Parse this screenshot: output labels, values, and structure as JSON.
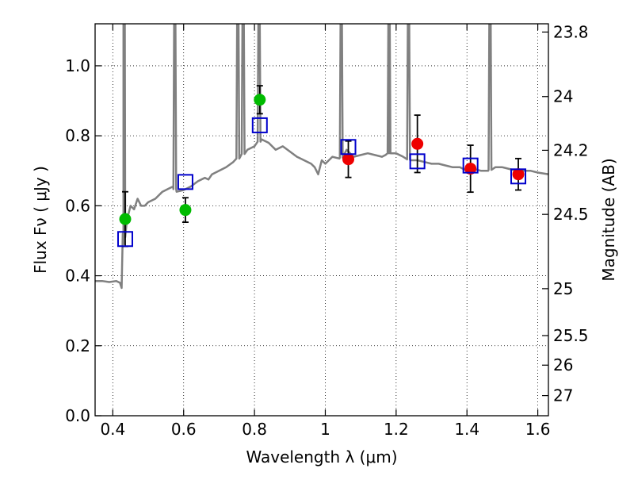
{
  "chart_data": {
    "type": "scatter",
    "title": "",
    "xlabel": "Wavelength  λ (μm)",
    "ylabel": "Flux  Fν  ( μJy )",
    "ylabel_right": "Magnitude (AB)",
    "xlim": [
      0.35,
      1.63
    ],
    "ylim": [
      0.0,
      1.12
    ],
    "grid": true,
    "x_ticks": [
      0.4,
      0.6,
      0.8,
      1.0,
      1.2,
      1.4,
      1.6
    ],
    "x_tick_labels": [
      "0.4",
      "0.6",
      "0.8",
      "1",
      "1.2",
      "1.4",
      "1.6"
    ],
    "y_ticks": [
      0.0,
      0.2,
      0.4,
      0.6,
      0.8,
      1.0
    ],
    "y_tick_labels": [
      "0.0",
      "0.2",
      "0.4",
      "0.6",
      "0.8",
      "1.0"
    ],
    "right_ticks": [
      {
        "label": "23.8",
        "mag": 23.8
      },
      {
        "label": "24",
        "mag": 24.0
      },
      {
        "label": "24.2",
        "mag": 24.2
      },
      {
        "label": "24.5",
        "mag": 24.5
      },
      {
        "label": "25",
        "mag": 25.0
      },
      {
        "label": "25.5",
        "mag": 25.5
      },
      {
        "label": "26",
        "mag": 26.0
      },
      {
        "label": "27",
        "mag": 27.0
      }
    ],
    "colors": {
      "spectrum": "#808080",
      "optical_points": "#00bb00",
      "nir_points": "#ee0000",
      "model_boxes": "#0000cc",
      "errorbars": "#000000"
    },
    "series": [
      {
        "type": "line",
        "x": [
          0.35,
          0.37,
          0.39,
          0.41,
          0.42,
          0.425,
          0.43,
          0.432,
          0.435,
          0.44,
          0.445,
          0.45,
          0.46,
          0.47,
          0.48,
          0.49,
          0.5,
          0.52,
          0.54,
          0.56,
          0.57,
          0.58,
          0.6,
          0.62,
          0.64,
          0.66,
          0.67,
          0.68,
          0.7,
          0.72,
          0.74,
          0.76,
          0.78,
          0.8,
          0.82,
          0.84,
          0.86,
          0.88,
          0.9,
          0.92,
          0.94,
          0.96,
          0.97,
          0.98,
          0.99,
          1.0,
          1.02,
          1.04,
          1.05,
          1.06,
          1.08,
          1.1,
          1.12,
          1.14,
          1.16,
          1.17,
          1.18,
          1.2,
          1.22,
          1.24,
          1.26,
          1.28,
          1.3,
          1.32,
          1.34,
          1.36,
          1.38,
          1.4,
          1.42,
          1.44,
          1.46,
          1.48,
          1.5,
          1.52,
          1.54,
          1.56,
          1.58,
          1.6,
          1.63
        ],
        "y": [
          0.385,
          0.385,
          0.382,
          0.385,
          0.38,
          0.365,
          0.49,
          0.52,
          0.51,
          0.56,
          0.58,
          0.6,
          0.59,
          0.62,
          0.6,
          0.6,
          0.61,
          0.62,
          0.64,
          0.65,
          0.655,
          0.64,
          0.645,
          0.655,
          0.67,
          0.68,
          0.675,
          0.69,
          0.7,
          0.71,
          0.725,
          0.74,
          0.76,
          0.77,
          0.79,
          0.78,
          0.76,
          0.77,
          0.755,
          0.74,
          0.73,
          0.72,
          0.71,
          0.69,
          0.73,
          0.72,
          0.74,
          0.735,
          0.74,
          0.76,
          0.74,
          0.745,
          0.75,
          0.745,
          0.74,
          0.745,
          0.75,
          0.75,
          0.74,
          0.73,
          0.73,
          0.725,
          0.72,
          0.72,
          0.715,
          0.71,
          0.71,
          0.7,
          0.705,
          0.7,
          0.7,
          0.71,
          0.71,
          0.705,
          0.7,
          0.7,
          0.7,
          0.695,
          0.69
        ]
      },
      {
        "type": "scatter",
        "marker": "circle",
        "x": [
          0.435,
          0.605,
          0.815
        ],
        "y": [
          0.562,
          0.588,
          0.903
        ],
        "yerr": [
          0.078,
          0.035,
          0.04
        ]
      },
      {
        "type": "scatter",
        "marker": "circle",
        "x": [
          1.065,
          1.26,
          1.41,
          1.545
        ],
        "y": [
          0.733,
          0.777,
          0.706,
          0.69
        ],
        "yerr": [
          0.052,
          0.082,
          0.067,
          0.045
        ]
      },
      {
        "type": "scatter",
        "marker": "square-open",
        "x": [
          0.435,
          0.605,
          0.815,
          1.065,
          1.26,
          1.41,
          1.545
        ],
        "y": [
          0.505,
          0.668,
          0.83,
          0.768,
          0.727,
          0.715,
          0.684
        ]
      }
    ],
    "emission_spikes": [
      {
        "x": 0.432,
        "peak": 1.12
      },
      {
        "x": 0.575,
        "peak": 1.12
      },
      {
        "x": 0.753,
        "peak": 1.12
      },
      {
        "x": 0.768,
        "peak": 1.12
      },
      {
        "x": 0.813,
        "peak": 1.12
      },
      {
        "x": 1.045,
        "peak": 1.12
      },
      {
        "x": 1.18,
        "peak": 1.12
      },
      {
        "x": 1.235,
        "peak": 1.12
      },
      {
        "x": 1.465,
        "peak": 1.12
      }
    ]
  }
}
